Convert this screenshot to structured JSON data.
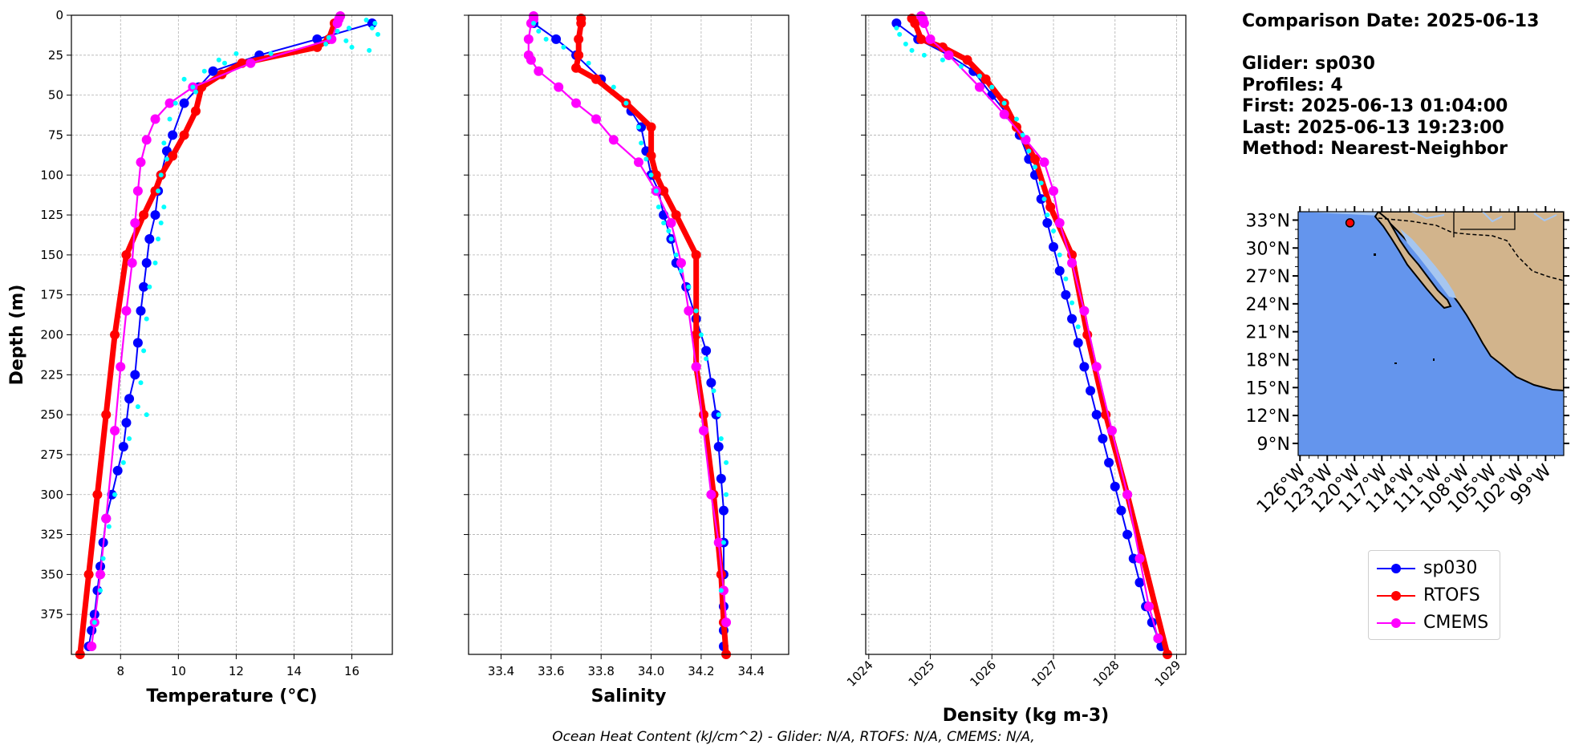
{
  "info": {
    "comparison": "Comparison Date: 2025-06-13",
    "glider": "Glider: sp030",
    "profiles": "Profiles: 4",
    "first": "First: 2025-06-13 01:04:00",
    "last": "Last: 2025-06-13 19:23:00",
    "method": "Method: Nearest-Neighbor"
  },
  "footer": "Ocean Heat Content (kJ/cm^2) - Glider: N/A,  RTOFS: N/A,  CMEMS: N/A,",
  "colors": {
    "glider": "#0000ff",
    "rtofs": "#ff0000",
    "cmems": "#ff00ff",
    "scatter": "#00ffff",
    "ocean": "#6495ed",
    "land": "#d2b48c",
    "lake": "#a6c6f0"
  },
  "legend": [
    {
      "label": "sp030",
      "color": "#0000ff"
    },
    {
      "label": "RTOFS",
      "color": "#ff0000"
    },
    {
      "label": "CMEMS",
      "color": "#ff00ff"
    }
  ],
  "chart_data": [
    {
      "type": "line",
      "xlabel": "Temperature (°C)",
      "ylabel": "Depth (m)",
      "xlim": [
        6.3,
        17.4
      ],
      "ylim": [
        400,
        0
      ],
      "xticks": [
        8,
        10,
        12,
        14,
        16
      ],
      "yticks": [
        0,
        25,
        50,
        75,
        100,
        125,
        150,
        175,
        200,
        225,
        250,
        275,
        300,
        325,
        350,
        375
      ],
      "grid": true,
      "series": [
        {
          "name": "sp030",
          "marker": true,
          "x": [
            16.7,
            14.8,
            12.8,
            11.2,
            10.7,
            10.2,
            9.8,
            9.6,
            9.4,
            9.3,
            9.2,
            9.0,
            8.9,
            8.8,
            8.7,
            8.6,
            8.5,
            8.3,
            8.2,
            8.1,
            7.9,
            7.7,
            7.5,
            7.4,
            7.3,
            7.2,
            7.1,
            7.0,
            6.9
          ],
          "y": [
            5,
            15,
            25,
            35,
            45,
            55,
            75,
            85,
            100,
            110,
            125,
            140,
            155,
            170,
            185,
            205,
            225,
            240,
            255,
            270,
            285,
            300,
            315,
            330,
            345,
            360,
            375,
            385,
            395
          ]
        },
        {
          "name": "RTOFS",
          "marker": true,
          "x": [
            15.4,
            15.2,
            14.8,
            12.2,
            11.5,
            10.8,
            10.6,
            10.2,
            9.8,
            9.4,
            9.2,
            8.8,
            8.2,
            7.8,
            7.5,
            7.2,
            6.9,
            6.6
          ],
          "y": [
            5,
            15,
            20,
            30,
            37,
            45,
            60,
            75,
            88,
            100,
            110,
            125,
            150,
            200,
            250,
            300,
            350,
            400
          ]
        },
        {
          "name": "CMEMS",
          "marker": true,
          "x": [
            15.6,
            15.55,
            15.5,
            15.3,
            12.5,
            10.5,
            9.7,
            9.2,
            8.9,
            8.7,
            8.6,
            8.5,
            8.4,
            8.2,
            8.0,
            7.8,
            7.5,
            7.3,
            7.1,
            7.0
          ],
          "y": [
            0.5,
            2.5,
            5,
            15,
            30,
            45,
            55,
            65,
            78,
            92,
            110,
            130,
            155,
            185,
            220,
            260,
            315,
            350,
            380,
            395
          ]
        },
        {
          "name": "glider profiles",
          "scatter": true,
          "x": [
            16.8,
            16.7,
            16.9,
            16.5,
            15.9,
            15.5,
            15.2,
            15.1,
            16.0,
            16.6,
            15.8,
            13.2,
            12.0,
            11.4,
            11.6,
            10.9,
            10.2,
            10.5,
            10.6,
            9.9,
            9.7,
            9.5,
            9.6,
            9.4,
            9.3,
            9.5,
            9.4,
            9.3,
            9.2,
            9.0,
            8.9,
            8.8,
            8.7,
            8.9,
            8.6,
            8.3,
            8.1,
            7.8,
            7.6,
            7.4,
            7.3,
            7.1
          ],
          "y": [
            5,
            8,
            12,
            3,
            8,
            10,
            14,
            18,
            20,
            22,
            16,
            24,
            24,
            28,
            30,
            35,
            40,
            45,
            48,
            55,
            65,
            80,
            90,
            100,
            110,
            120,
            130,
            140,
            155,
            170,
            190,
            210,
            230,
            250,
            245,
            265,
            280,
            300,
            320,
            340,
            360,
            380
          ]
        }
      ]
    },
    {
      "type": "line",
      "xlabel": "Salinity",
      "ylabel": "",
      "xlim": [
        33.27,
        34.55
      ],
      "ylim": [
        400,
        0
      ],
      "xticks": [
        33.4,
        33.6,
        33.8,
        34.0,
        34.2,
        34.4
      ],
      "yticks": [
        0,
        25,
        50,
        75,
        100,
        125,
        150,
        175,
        200,
        225,
        250,
        275,
        300,
        325,
        350,
        375
      ],
      "grid": true,
      "series": [
        {
          "name": "sp030",
          "marker": true,
          "x": [
            33.53,
            33.62,
            33.7,
            33.8,
            33.92,
            33.96,
            33.98,
            34.0,
            34.03,
            34.05,
            34.08,
            34.1,
            34.14,
            34.18,
            34.22,
            34.24,
            34.26,
            34.27,
            34.28,
            34.29,
            34.29,
            34.29,
            34.29,
            34.29,
            34.29
          ],
          "y": [
            5,
            15,
            25,
            40,
            60,
            70,
            85,
            100,
            110,
            125,
            140,
            155,
            170,
            190,
            210,
            230,
            250,
            270,
            290,
            310,
            330,
            350,
            370,
            385,
            395
          ]
        },
        {
          "name": "RTOFS",
          "marker": true,
          "x": [
            33.72,
            33.72,
            33.71,
            33.71,
            33.7,
            33.78,
            33.9,
            34.0,
            34.0,
            34.02,
            34.05,
            34.1,
            34.18,
            34.18,
            34.18,
            34.21,
            34.25,
            34.28,
            34.29,
            34.3
          ],
          "y": [
            2,
            5,
            15,
            25,
            33,
            40,
            55,
            70,
            88,
            100,
            110,
            125,
            150,
            200,
            220,
            250,
            300,
            350,
            380,
            400
          ]
        },
        {
          "name": "CMEMS",
          "marker": true,
          "x": [
            33.53,
            33.53,
            33.52,
            33.51,
            33.51,
            33.52,
            33.55,
            33.63,
            33.7,
            33.78,
            33.85,
            33.95,
            34.02,
            34.08,
            34.12,
            34.15,
            34.18,
            34.21,
            34.24,
            34.27,
            34.29,
            34.3
          ],
          "y": [
            0.5,
            2.5,
            5,
            15,
            25,
            28,
            35,
            45,
            55,
            65,
            78,
            92,
            110,
            130,
            155,
            185,
            220,
            260,
            300,
            330,
            360,
            380
          ]
        },
        {
          "name": "glider profiles",
          "scatter": true,
          "x": [
            33.53,
            33.55,
            33.58,
            33.65,
            33.75,
            33.85,
            33.9,
            33.95,
            33.96,
            33.98,
            34.0,
            34.02,
            34.03,
            34.05,
            34.07,
            34.08,
            34.1,
            34.12,
            34.15,
            34.18,
            34.2,
            34.22,
            34.25,
            34.27,
            34.28,
            34.3,
            34.3,
            34.29,
            34.28
          ],
          "y": [
            5,
            10,
            15,
            20,
            30,
            45,
            55,
            70,
            80,
            90,
            100,
            110,
            120,
            130,
            135,
            140,
            150,
            160,
            170,
            185,
            200,
            215,
            235,
            250,
            265,
            280,
            300,
            330,
            360
          ]
        }
      ]
    },
    {
      "type": "line",
      "xlabel": "Density (kg m-3)",
      "ylabel": "",
      "xlim": [
        1023.95,
        1029.15
      ],
      "ylim": [
        400,
        0
      ],
      "xticks": [
        1024,
        1025,
        1026,
        1027,
        1028,
        1029
      ],
      "yticks": [
        0,
        25,
        50,
        75,
        100,
        125,
        150,
        175,
        200,
        225,
        250,
        275,
        300,
        325,
        350,
        375
      ],
      "grid": true,
      "series": [
        {
          "name": "sp030",
          "marker": true,
          "x": [
            1024.45,
            1024.8,
            1025.3,
            1025.7,
            1026.0,
            1026.25,
            1026.45,
            1026.6,
            1026.7,
            1026.8,
            1026.9,
            1027.0,
            1027.1,
            1027.2,
            1027.3,
            1027.4,
            1027.5,
            1027.6,
            1027.7,
            1027.8,
            1027.9,
            1028.0,
            1028.1,
            1028.2,
            1028.3,
            1028.4,
            1028.5,
            1028.6,
            1028.7,
            1028.75
          ],
          "y": [
            5,
            15,
            25,
            35,
            50,
            62,
            75,
            90,
            100,
            115,
            130,
            145,
            160,
            175,
            190,
            205,
            220,
            235,
            250,
            265,
            280,
            295,
            310,
            325,
            340,
            355,
            370,
            380,
            390,
            395
          ]
        },
        {
          "name": "RTOFS",
          "marker": true,
          "x": [
            1024.7,
            1024.75,
            1024.85,
            1025.2,
            1025.6,
            1025.9,
            1026.2,
            1026.4,
            1026.7,
            1026.95,
            1027.3,
            1027.55,
            1027.85,
            1028.2,
            1028.85
          ],
          "y": [
            2,
            5,
            15,
            20,
            28,
            40,
            55,
            70,
            90,
            120,
            150,
            200,
            250,
            300,
            400
          ]
        },
        {
          "name": "CMEMS",
          "marker": true,
          "x": [
            1024.85,
            1024.88,
            1024.9,
            1025.0,
            1025.3,
            1025.8,
            1026.2,
            1026.55,
            1026.85,
            1027.0,
            1027.1,
            1027.3,
            1027.5,
            1027.7,
            1027.95,
            1028.2,
            1028.4,
            1028.55,
            1028.7
          ],
          "y": [
            0.5,
            2.5,
            5,
            15,
            25,
            45,
            62,
            78,
            92,
            110,
            130,
            155,
            185,
            220,
            260,
            300,
            340,
            370,
            390
          ]
        },
        {
          "name": "glider profiles",
          "scatter": true,
          "x": [
            1024.45,
            1024.5,
            1024.6,
            1024.7,
            1024.9,
            1025.2,
            1025.5,
            1025.8,
            1026.0,
            1026.2,
            1026.4,
            1026.5,
            1026.6,
            1026.7,
            1026.8,
            1026.85,
            1026.9,
            1027.0,
            1027.1,
            1027.2,
            1027.3,
            1027.4
          ],
          "y": [
            8,
            12,
            18,
            22,
            25,
            28,
            32,
            38,
            45,
            55,
            65,
            75,
            85,
            95,
            105,
            115,
            125,
            135,
            150,
            165,
            180,
            195
          ]
        }
      ]
    }
  ],
  "map": {
    "lat_ticks": [
      "33°N",
      "30°N",
      "27°N",
      "24°N",
      "21°N",
      "18°N",
      "15°N",
      "12°N",
      "9°N"
    ],
    "lon_ticks": [
      "126°W",
      "123°W",
      "120°W",
      "117°W",
      "114°W",
      "111°W",
      "108°W",
      "105°W",
      "102°W",
      "99°W"
    ],
    "lat_values": [
      33,
      30,
      27,
      24,
      21,
      18,
      15,
      12,
      9
    ],
    "lon_values": [
      -126,
      -123,
      -120,
      -117,
      -114,
      -111,
      -108,
      -105,
      -102,
      -99
    ],
    "extent": {
      "lon": [
        -126.2,
        -97
      ],
      "lat": [
        7.7,
        33.9
      ]
    },
    "glider_position": {
      "lon": -120.5,
      "lat": 32.7
    }
  }
}
